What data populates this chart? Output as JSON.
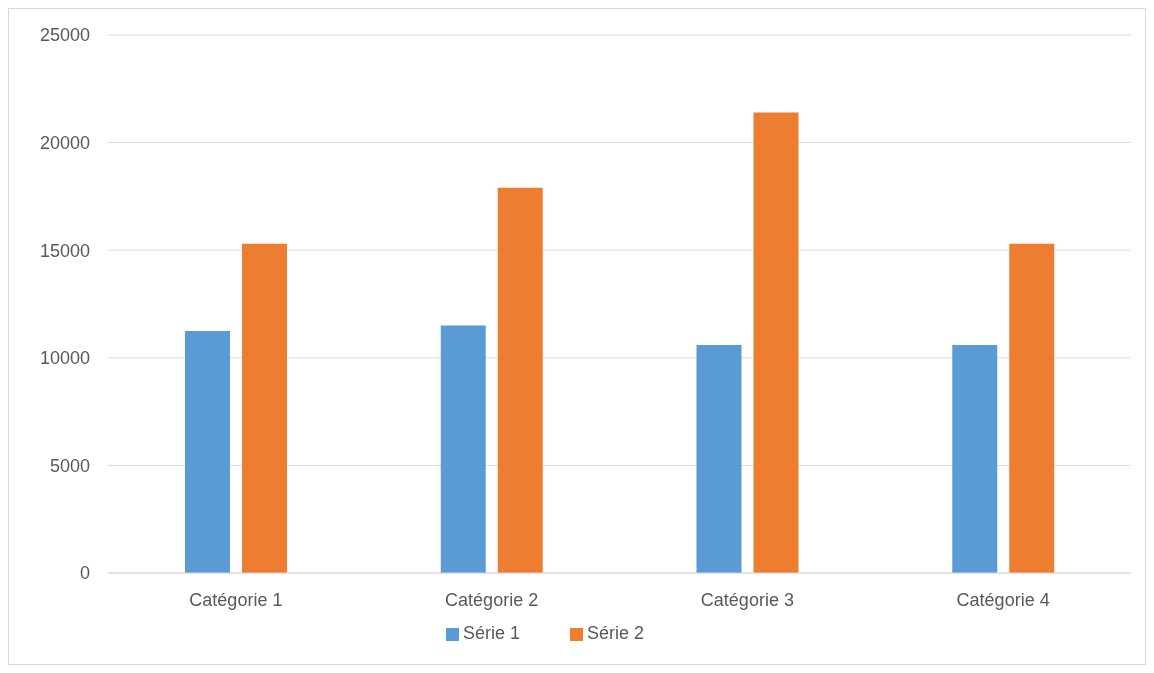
{
  "chart_data": {
    "type": "bar",
    "categories": [
      "Catégorie 1",
      "Catégorie 2",
      "Catégorie 3",
      "Catégorie 4"
    ],
    "series": [
      {
        "name": "Série 1",
        "color": "#5b9bd5",
        "values": [
          11250,
          11500,
          10600,
          10600
        ]
      },
      {
        "name": "Série 2",
        "color": "#ed7d31",
        "values": [
          15300,
          17900,
          21400,
          15300
        ]
      }
    ],
    "ylim": [
      0,
      25000
    ],
    "yticks": [
      0,
      5000,
      10000,
      15000,
      20000,
      25000
    ],
    "grid": "y",
    "legend": "bottom"
  }
}
